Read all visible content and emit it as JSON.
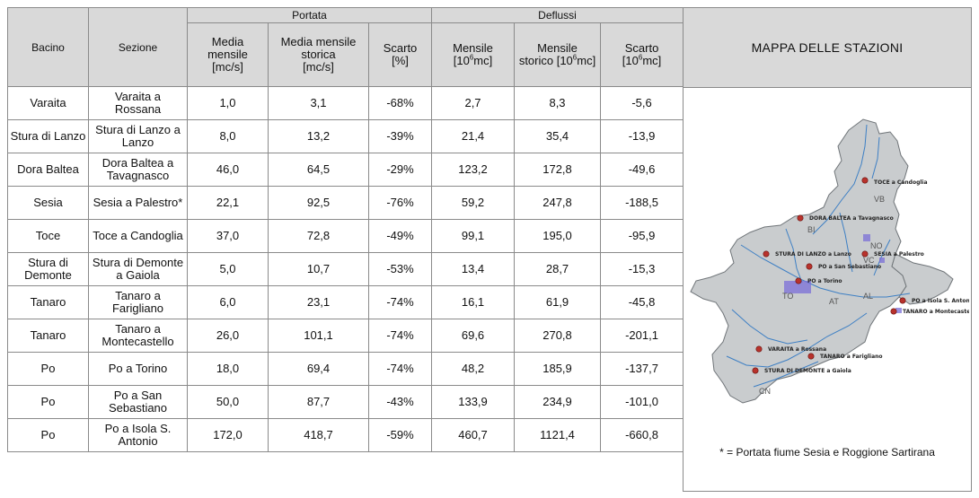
{
  "header": {
    "bacino": "Bacino",
    "sezione": "Sezione",
    "portata": "Portata",
    "deflussi": "Deflussi",
    "media_mensile": [
      "Media",
      "mensile",
      "[mc/s]"
    ],
    "media_mensile_storica": [
      "Media mensile",
      "storica",
      "[mc/s]"
    ],
    "scarto_pct": [
      "Scarto",
      "[%]"
    ],
    "mensile": [
      "Mensile",
      "[10",
      "6",
      "mc]"
    ],
    "mensile_storico": [
      "Mensile",
      "storico [10",
      "6",
      "mc]"
    ],
    "scarto_defl": [
      "Scarto",
      "[10",
      "6",
      "mc]"
    ]
  },
  "rows": [
    {
      "bacino": "Varaita",
      "sezione": "Varaita a Rossana",
      "media": "1,0",
      "storica": "3,1",
      "scarto": "-68%",
      "mensile": "2,7",
      "mens_storico": "8,3",
      "scarto_d": "-5,6"
    },
    {
      "bacino": "Stura di Lanzo",
      "sezione": "Stura di Lanzo a Lanzo",
      "media": "8,0",
      "storica": "13,2",
      "scarto": "-39%",
      "mensile": "21,4",
      "mens_storico": "35,4",
      "scarto_d": "-13,9"
    },
    {
      "bacino": "Dora Baltea",
      "sezione": "Dora Baltea a Tavagnasco",
      "media": "46,0",
      "storica": "64,5",
      "scarto": "-29%",
      "mensile": "123,2",
      "mens_storico": "172,8",
      "scarto_d": "-49,6"
    },
    {
      "bacino": "Sesia",
      "sezione": "Sesia a Palestro*",
      "media": "22,1",
      "storica": "92,5",
      "scarto": "-76%",
      "mensile": "59,2",
      "mens_storico": "247,8",
      "scarto_d": "-188,5"
    },
    {
      "bacino": "Toce",
      "sezione": "Toce a Candoglia",
      "media": "37,0",
      "storica": "72,8",
      "scarto": "-49%",
      "mensile": "99,1",
      "mens_storico": "195,0",
      "scarto_d": "-95,9"
    },
    {
      "bacino": "Stura di Demonte",
      "sezione": "Stura di Demonte a Gaiola",
      "media": "5,0",
      "storica": "10,7",
      "scarto": "-53%",
      "mensile": "13,4",
      "mens_storico": "28,7",
      "scarto_d": "-15,3"
    },
    {
      "bacino": "Tanaro",
      "sezione": "Tanaro a Farigliano",
      "media": "6,0",
      "storica": "23,1",
      "scarto": "-74%",
      "mensile": "16,1",
      "mens_storico": "61,9",
      "scarto_d": "-45,8"
    },
    {
      "bacino": "Tanaro",
      "sezione": "Tanaro a Montecastello",
      "media": "26,0",
      "storica": "101,1",
      "scarto": "-74%",
      "mensile": "69,6",
      "mens_storico": "270,8",
      "scarto_d": "-201,1"
    },
    {
      "bacino": "Po",
      "sezione": "Po a Torino",
      "media": "18,0",
      "storica": "69,4",
      "scarto": "-74%",
      "mensile": "48,2",
      "mens_storico": "185,9",
      "scarto_d": "-137,7"
    },
    {
      "bacino": "Po",
      "sezione": "Po a San Sebastiano",
      "media": "50,0",
      "storica": "87,7",
      "scarto": "-43%",
      "mensile": "133,9",
      "mens_storico": "234,9",
      "scarto_d": "-101,0"
    },
    {
      "bacino": "Po",
      "sezione": "Po a Isola S. Antonio",
      "media": "172,0",
      "storica": "418,7",
      "scarto": "-59%",
      "mensile": "460,7",
      "mens_storico": "1121,4",
      "scarto_d": "-660,8"
    }
  ],
  "side": {
    "title": "MAPPA DELLE STAZIONI",
    "note": "* =  Portata fiume Sesia e Roggione Sartirana"
  },
  "map": {
    "stations": [
      {
        "label": "TOCE a Candoglia"
      },
      {
        "label": "DORA BALTEA a Tavagnasco"
      },
      {
        "label": "SESIA a Palestro"
      },
      {
        "label": "STURA DI LANZO a Lanzo"
      },
      {
        "label": "PO a San Sebastiano"
      },
      {
        "label": "PO a Torino"
      },
      {
        "label": "PO a Isola S. Antonio"
      },
      {
        "label": "TANARO a Montecastello"
      },
      {
        "label": "VARAITA a Rossana"
      },
      {
        "label": "TANARO a Farigliano"
      },
      {
        "label": "STURA DI DEMONTE a Gaiola"
      }
    ],
    "provinces": [
      "VB",
      "BI",
      "NO",
      "VC",
      "TO",
      "AT",
      "AL",
      "CN"
    ],
    "colors": {
      "land": "#c9ccce",
      "station": "#b8322c",
      "river": "#3d7fc4",
      "city": "#7b6fd8"
    }
  }
}
